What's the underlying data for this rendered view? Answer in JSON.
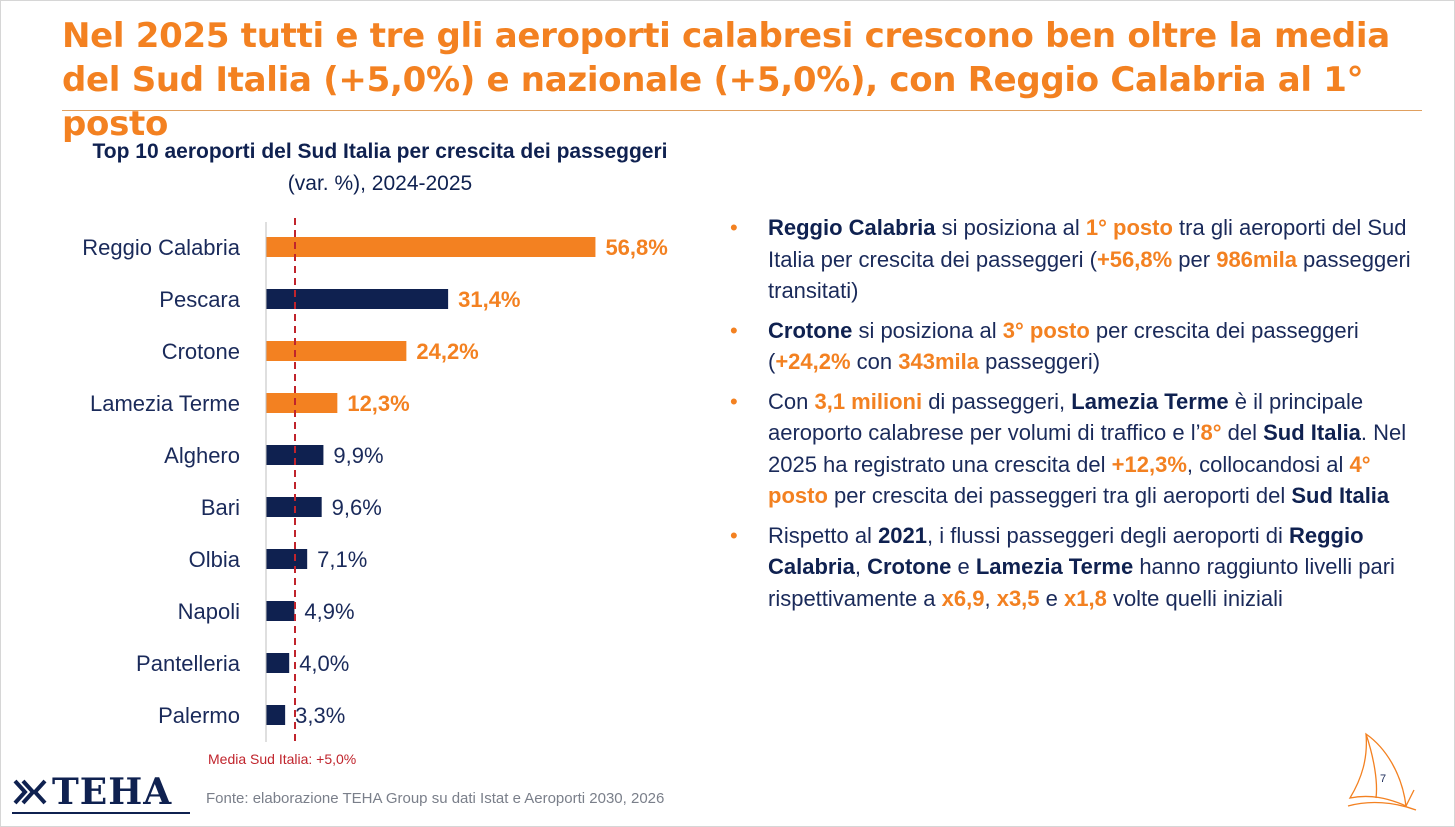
{
  "title": "Nel 2025 tutti e tre gli aeroporti calabresi crescono ben oltre la media del Sud Italia (+5,0%) e nazionale (+5,0%), con Reggio Calabria al 1° posto",
  "chart_title": {
    "bold": "Top 10 aeroporti del Sud Italia per crescita dei passeggeri",
    "normal": " (var. %), 2024-2025"
  },
  "chart_data": {
    "type": "bar",
    "orientation": "horizontal",
    "title": "Top 10 aeroporti del Sud Italia per crescita dei passeggeri (var. %), 2024-2025",
    "categories": [
      "Reggio Calabria",
      "Pescara",
      "Crotone",
      "Lamezia Terme",
      "Alghero",
      "Bari",
      "Olbia",
      "Napoli",
      "Pantelleria",
      "Palermo"
    ],
    "values": [
      56.8,
      31.4,
      24.2,
      12.3,
      9.9,
      9.6,
      7.1,
      4.9,
      4.0,
      3.3
    ],
    "value_labels": [
      "56,8%",
      "31,4%",
      "24,2%",
      "12,3%",
      "9,9%",
      "9,6%",
      "7,1%",
      "4,9%",
      "4,0%",
      "3,3%"
    ],
    "highlight": [
      true,
      false,
      true,
      true,
      false,
      false,
      false,
      false,
      false,
      false
    ],
    "bold_labels": [
      true,
      true,
      true,
      true,
      false,
      false,
      false,
      false,
      false,
      false
    ],
    "colors": {
      "highlight": "#f38121",
      "default": "#0f2150",
      "reference": "#c0242c"
    },
    "xlim": [
      0,
      58
    ],
    "reference_line": {
      "value": 5.0,
      "label": "Media Sud Italia: +5,0%"
    },
    "grid": false
  },
  "bullets": [
    [
      {
        "t": "Reggio Calabria",
        "s": "n"
      },
      {
        "t": " si posiziona al "
      },
      {
        "t": "1° posto",
        "s": "o"
      },
      {
        "t": " tra gli aeroporti del Sud Italia per crescita dei passeggeri ("
      },
      {
        "t": "+56,8%",
        "s": "o"
      },
      {
        "t": " per "
      },
      {
        "t": "986mila",
        "s": "o"
      },
      {
        "t": " passeggeri transitati)"
      }
    ],
    [
      {
        "t": "Crotone",
        "s": "n"
      },
      {
        "t": " si posiziona al "
      },
      {
        "t": "3° posto",
        "s": "o"
      },
      {
        "t": " per crescita dei passeggeri ("
      },
      {
        "t": "+24,2%",
        "s": "o"
      },
      {
        "t": " con "
      },
      {
        "t": "343mila",
        "s": "o"
      },
      {
        "t": " passeggeri)"
      }
    ],
    [
      {
        "t": "Con "
      },
      {
        "t": "3,1 milioni",
        "s": "o"
      },
      {
        "t": " di passeggeri, "
      },
      {
        "t": "Lamezia Terme",
        "s": "n"
      },
      {
        "t": " è il principale aeroporto calabrese per volumi di traffico e l’"
      },
      {
        "t": "8°",
        "s": "o"
      },
      {
        "t": " del "
      },
      {
        "t": "Sud Italia",
        "s": "n"
      },
      {
        "t": ". Nel 2025 ha registrato una crescita del "
      },
      {
        "t": "+12,3%",
        "s": "o"
      },
      {
        "t": ", collocandosi al "
      },
      {
        "t": "4° posto",
        "s": "o"
      },
      {
        "t": " per crescita dei passeggeri tra gli aeroporti del "
      },
      {
        "t": "Sud Italia",
        "s": "n"
      }
    ],
    [
      {
        "t": "Rispetto al "
      },
      {
        "t": "2021",
        "s": "n"
      },
      {
        "t": ", i flussi passeggeri degli aeroporti di "
      },
      {
        "t": "Reggio Calabria",
        "s": "n"
      },
      {
        "t": ", "
      },
      {
        "t": "Crotone",
        "s": "n"
      },
      {
        "t": " e "
      },
      {
        "t": "Lamezia Terme",
        "s": "n"
      },
      {
        "t": " hanno raggiunto livelli pari rispettivamente a "
      },
      {
        "t": "x6,9",
        "s": "o"
      },
      {
        "t": ", "
      },
      {
        "t": "x3,5",
        "s": "o"
      },
      {
        "t": " e "
      },
      {
        "t": "x1,8",
        "s": "o"
      },
      {
        "t": " volte quelli iniziali"
      }
    ]
  ],
  "bullet_char": "•",
  "logo": {
    "text": "TEHA",
    "icon": "teha-logo-icon"
  },
  "source": "Fonte: elaborazione TEHA Group su dati Istat e Aeroporti 2030, 2026",
  "page_number": "7",
  "corner_icon": "sail-icon"
}
